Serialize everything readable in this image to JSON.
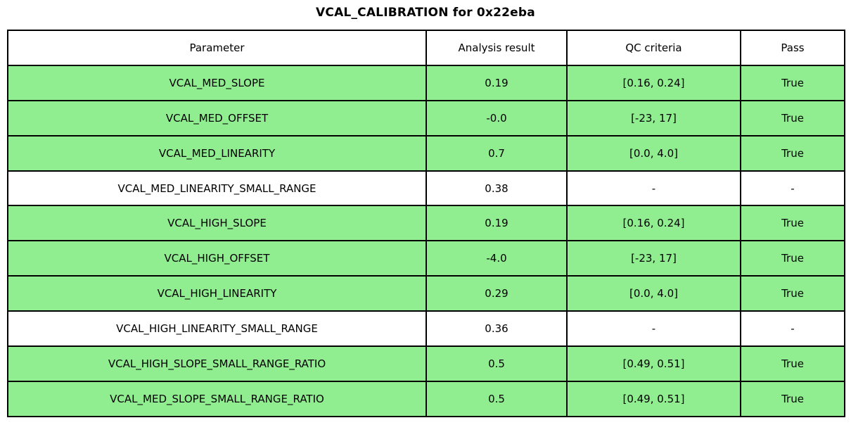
{
  "chart_data": {
    "type": "table",
    "title": "VCAL_CALIBRATION for 0x22eba",
    "columns": [
      "Parameter",
      "Analysis result",
      "QC criteria",
      "Pass"
    ],
    "rows": [
      [
        "VCAL_MED_SLOPE",
        "0.19",
        "[0.16, 0.24]",
        "True"
      ],
      [
        "VCAL_MED_OFFSET",
        "-0.0",
        "[-23, 17]",
        "True"
      ],
      [
        "VCAL_MED_LINEARITY",
        "0.7",
        "[0.0, 4.0]",
        "True"
      ],
      [
        "VCAL_MED_LINEARITY_SMALL_RANGE",
        "0.38",
        "-",
        "-"
      ],
      [
        "VCAL_HIGH_SLOPE",
        "0.19",
        "[0.16, 0.24]",
        "True"
      ],
      [
        "VCAL_HIGH_OFFSET",
        "-4.0",
        "[-23, 17]",
        "True"
      ],
      [
        "VCAL_HIGH_LINEARITY",
        "0.29",
        "[0.0, 4.0]",
        "True"
      ],
      [
        "VCAL_HIGH_LINEARITY_SMALL_RANGE",
        "0.36",
        "-",
        "-"
      ],
      [
        "VCAL_HIGH_SLOPE_SMALL_RANGE_RATIO",
        "0.5",
        "[0.49, 0.51]",
        "True"
      ],
      [
        "VCAL_MED_SLOPE_SMALL_RANGE_RATIO",
        "0.5",
        "[0.49, 0.51]",
        "True"
      ]
    ],
    "row_passed": [
      true,
      true,
      true,
      false,
      true,
      true,
      true,
      false,
      true,
      true
    ],
    "colors": {
      "pass_row_green": "#90EE90",
      "border": "#000000",
      "background": "#FFFFFF",
      "text": "#000000"
    }
  }
}
